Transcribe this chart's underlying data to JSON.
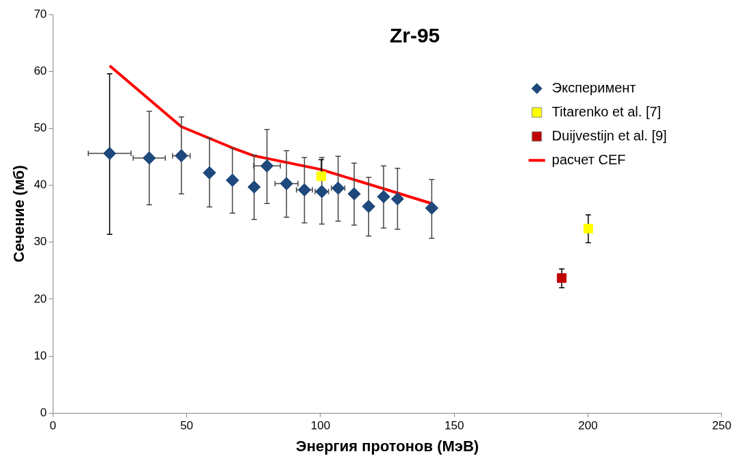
{
  "chart_data": {
    "type": "scatter",
    "title": "Zr-95",
    "xlabel": "Энергия протонов (МэВ)",
    "ylabel": "Сечение (мб)",
    "xlim": [
      0,
      250
    ],
    "xticks": [
      0,
      50,
      100,
      150,
      200,
      250
    ],
    "ylim": [
      0,
      70
    ],
    "yticks": [
      0,
      10,
      20,
      30,
      40,
      50,
      60,
      70
    ],
    "grid": false,
    "legend": "top right",
    "series": [
      {
        "name": "Эксперимент",
        "marker": "diamond",
        "color": "#1f497d",
        "x": [
          21.2,
          36,
          48,
          58.5,
          67.1,
          75.2,
          80,
          87.3,
          94,
          100.5,
          106.6,
          112.6,
          118,
          123.6,
          128.8,
          141.6
        ],
        "values": [
          45.6,
          44.8,
          45.2,
          42.2,
          40.9,
          39.7,
          43.4,
          40.3,
          39.2,
          38.9,
          39.5,
          38.5,
          36.3,
          38,
          37.6,
          36
        ],
        "errors": [
          [
            31.4,
            59.6
          ],
          [
            36.6,
            53
          ],
          [
            38.5,
            52
          ],
          [
            36.2,
            48.3
          ],
          [
            35.1,
            46.5
          ],
          [
            34,
            45.3
          ],
          [
            36.8,
            49.8
          ],
          [
            34.4,
            46.1
          ],
          [
            33.4,
            44.9
          ],
          [
            33.2,
            44.9
          ],
          [
            33.7,
            45.1
          ],
          [
            33,
            43.9
          ],
          [
            31.1,
            41.4
          ],
          [
            32.5,
            43.4
          ],
          [
            32.3,
            43
          ],
          [
            30.7,
            41
          ]
        ],
        "xerrors": [
          8,
          6,
          3.3,
          null,
          null,
          null,
          5,
          4.3,
          3,
          2.5,
          2.5,
          null,
          null,
          null,
          null,
          null
        ]
      },
      {
        "name": "Titarenko et al. [7]",
        "marker": "square",
        "color": "#ffff00",
        "x": [
          100.3,
          200.1
        ],
        "values": [
          41.6,
          32.4
        ],
        "errors": [
          [
            41.6,
            44.5
          ],
          [
            29.9,
            34.8
          ]
        ]
      },
      {
        "name": "Duijvestijn et al. [9]",
        "marker": "square",
        "color": "#c00000",
        "x": [
          190.2
        ],
        "values": [
          23.7
        ],
        "errors": [
          [
            22,
            25.3
          ]
        ]
      },
      {
        "name": "расчет CEF",
        "type": "line",
        "marker": "none",
        "color": "#ff0000",
        "x": [
          21.2,
          48,
          67,
          75,
          100,
          141.6
        ],
        "values": [
          61,
          50.3,
          46.6,
          45.2,
          42.8,
          36.8
        ]
      }
    ]
  }
}
